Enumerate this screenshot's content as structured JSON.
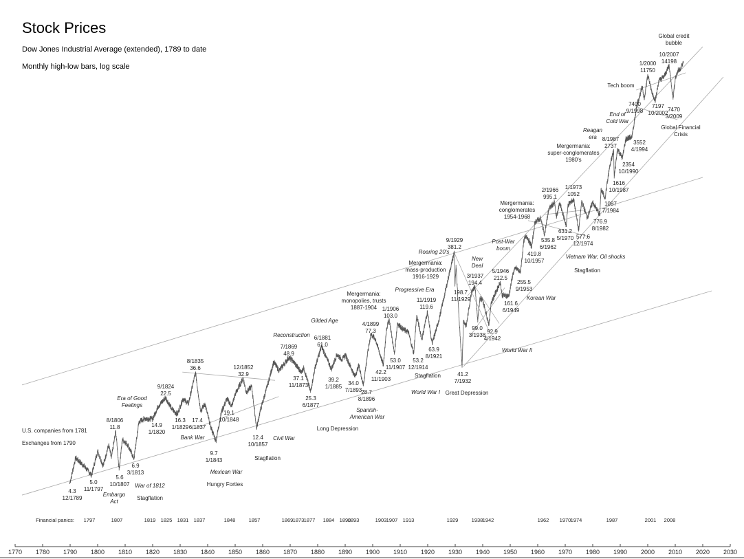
{
  "chart_data": {
    "type": "line",
    "title": "Stock Prices",
    "subtitle": "Dow Jones Industrial Average (extended), 1789 to date",
    "subtitle2": "Monthly high-low bars, log scale",
    "y_scale": "log",
    "grid": false,
    "xlim": [
      1770,
      2030
    ],
    "x_ticks": [
      1770,
      1780,
      1790,
      1800,
      1810,
      1820,
      1830,
      1840,
      1850,
      1860,
      1870,
      1880,
      1890,
      1900,
      1910,
      1920,
      1930,
      1940,
      1950,
      1960,
      1970,
      1980,
      1990,
      2000,
      2010,
      2020,
      2030
    ],
    "line_color": "#555555",
    "trend_line_color": "#aaaaaa",
    "notes": [
      "U.S. companies from 1781",
      "Exchanges from 1790"
    ],
    "series": [
      {
        "points": [
          [
            1789.9,
            4.3
          ],
          [
            1792,
            7
          ],
          [
            1795,
            6
          ],
          [
            1797.8,
            5.0
          ],
          [
            1800,
            8
          ],
          [
            1802,
            6
          ],
          [
            1804,
            9
          ],
          [
            1805,
            7
          ],
          [
            1806.6,
            11.8
          ],
          [
            1807.8,
            5.6
          ],
          [
            1809,
            10
          ],
          [
            1811,
            9
          ],
          [
            1813.2,
            6.9
          ],
          [
            1815,
            14
          ],
          [
            1817,
            15
          ],
          [
            1820,
            14.9
          ],
          [
            1822,
            19
          ],
          [
            1824.7,
            22.5
          ],
          [
            1827,
            18
          ],
          [
            1829,
            16.3
          ],
          [
            1831,
            22
          ],
          [
            1833,
            20
          ],
          [
            1835.6,
            36.6
          ],
          [
            1836.5,
            25
          ],
          [
            1837.5,
            17.4
          ],
          [
            1839,
            20
          ],
          [
            1841,
            13
          ],
          [
            1843,
            9.7
          ],
          [
            1845,
            17
          ],
          [
            1847,
            22
          ],
          [
            1848.8,
            19.1
          ],
          [
            1850,
            24
          ],
          [
            1852.9,
            32.9
          ],
          [
            1854,
            25
          ],
          [
            1856,
            28
          ],
          [
            1857.8,
            12.4
          ],
          [
            1859,
            17
          ],
          [
            1862,
            30
          ],
          [
            1864,
            45
          ],
          [
            1866,
            38
          ],
          [
            1869.5,
            48.9
          ],
          [
            1871,
            46
          ],
          [
            1873.9,
            37.1
          ],
          [
            1875,
            40
          ],
          [
            1877.4,
            25.3
          ],
          [
            1879,
            40
          ],
          [
            1881.4,
            61.0
          ],
          [
            1883,
            50
          ],
          [
            1885,
            39.2
          ],
          [
            1887,
            52
          ],
          [
            1889,
            47
          ],
          [
            1890,
            52
          ],
          [
            1893.5,
            34.0
          ],
          [
            1895,
            42
          ],
          [
            1896.6,
            28.7
          ],
          [
            1898,
            50
          ],
          [
            1899.3,
            77.3
          ],
          [
            1901,
            70
          ],
          [
            1903.9,
            42.2
          ],
          [
            1905,
            85
          ],
          [
            1906,
            103.0
          ],
          [
            1907.9,
            53.0
          ],
          [
            1909,
            95
          ],
          [
            1911,
            85
          ],
          [
            1913,
            80
          ],
          [
            1914.9,
            53.2
          ],
          [
            1916,
            110
          ],
          [
            1917.9,
            70
          ],
          [
            1919.9,
            119.6
          ],
          [
            1921.6,
            63.9
          ],
          [
            1924,
            100
          ],
          [
            1926,
            160
          ],
          [
            1928,
            260
          ],
          [
            1929.7,
            381.2
          ],
          [
            1929.9,
            198.7
          ],
          [
            1930.3,
            290
          ],
          [
            1931,
            150
          ],
          [
            1932.5,
            41.2
          ],
          [
            1933,
            100
          ],
          [
            1934,
            90
          ],
          [
            1936,
            180
          ],
          [
            1937.2,
            194.4
          ],
          [
            1938.2,
            99.0
          ],
          [
            1939,
            155
          ],
          [
            1940,
            150
          ],
          [
            1942.3,
            92.9
          ],
          [
            1943,
            140
          ],
          [
            1946.4,
            212.5
          ],
          [
            1947,
            165
          ],
          [
            1949.5,
            161.6
          ],
          [
            1951,
            250
          ],
          [
            1952,
            280
          ],
          [
            1953.7,
            255.5
          ],
          [
            1955,
            480
          ],
          [
            1956,
            520
          ],
          [
            1957.8,
            419.8
          ],
          [
            1959,
            680
          ],
          [
            1961,
            730
          ],
          [
            1962.5,
            535.8
          ],
          [
            1964,
            870
          ],
          [
            1966.1,
            995.1
          ],
          [
            1966.8,
            740
          ],
          [
            1968,
            985
          ],
          [
            1970.4,
            631.2
          ],
          [
            1971,
            950
          ],
          [
            1973.1,
            1052
          ],
          [
            1974.9,
            577.6
          ],
          [
            1976,
            1020
          ],
          [
            1978,
            740
          ],
          [
            1980,
            1000
          ],
          [
            1982.6,
            776.9
          ],
          [
            1983,
            1280
          ],
          [
            1984.5,
            1087
          ],
          [
            1986,
            1900
          ],
          [
            1987.6,
            2737
          ],
          [
            1987.8,
            1616
          ],
          [
            1989,
            2800
          ],
          [
            1990.8,
            2354
          ],
          [
            1992,
            3400
          ],
          [
            1994.3,
            3552
          ],
          [
            1996,
            6500
          ],
          [
            1998,
            9300
          ],
          [
            1998.7,
            7400
          ],
          [
            2000,
            11750
          ],
          [
            2001.7,
            8200
          ],
          [
            2002.8,
            7197
          ],
          [
            2004,
            10500
          ],
          [
            2006,
            11500
          ],
          [
            2007.8,
            14198
          ],
          [
            2009.2,
            7470
          ],
          [
            2010,
            11000
          ],
          [
            2011,
            12800
          ],
          [
            2012,
            13500
          ],
          [
            2013,
            15000
          ]
        ]
      }
    ],
    "trend_lines": [
      [
        [
          1772.5,
          3.4
        ],
        [
          2023.3,
          179
        ]
      ],
      [
        [
          1772.5,
          28.8
        ],
        [
          2020,
          1617
        ]
      ],
      [
        [
          1933,
          41.2
        ],
        [
          2027.5,
          11330
        ]
      ],
      [
        [
          1934.5,
          163
        ],
        [
          2020,
          20400
        ]
      ],
      [
        [
          1830.8,
          37
        ],
        [
          1864.5,
          31.5
        ]
      ],
      [
        [
          1834.5,
          12.2
        ],
        [
          1865.8,
          23
        ]
      ],
      [
        [
          1929.5,
          381
        ],
        [
          1942.5,
          80
        ]
      ],
      [
        [
          1937.2,
          194
        ],
        [
          1946,
          95
        ]
      ],
      [
        [
          1935.5,
          75
        ],
        [
          1948,
          190
        ]
      ],
      [
        [
          1962.5,
          785
        ],
        [
          1977.3,
          860
        ]
      ],
      [
        [
          1956.5,
          700
        ],
        [
          1979,
          510
        ]
      ],
      [
        [
          1995.8,
          8800
        ],
        [
          2013.8,
          12300
        ]
      ],
      [
        [
          1995.3,
          6400
        ],
        [
          2010.8,
          4960
        ]
      ]
    ],
    "point_labels": [
      "4.3\n12/1789",
      "5.0\n11/1797",
      "5.6\n10/1807",
      "6.9\n3/1813",
      "8/1806\n11.8",
      "14.9\n1/1820",
      "9/1824\n22.5",
      "16.3\n1/1829",
      "8/1835\n36.6",
      "17.4\n6/1837",
      "9.7\n1/1843",
      "19.1\n10/1848",
      "12/1852\n32.9",
      "12.4\n10/1857",
      "7/1869\n48.9",
      "37.1\n11/1873",
      "25.3\n6/1877",
      "6/1881\n61.0",
      "39.2\n1/1885",
      "34.0\n7/1893",
      "28.7\n8/1896",
      "4/1899\n77.3",
      "42.2\n11/1903",
      "1/1906\n103.0",
      "53.0\n11/1907",
      "53.2\n12/1914",
      "11/1919\n119.6",
      "63.9\n8/1921",
      "9/1929\n381.2",
      "198.7\n11/1929",
      "41.2\n7/1932",
      "3/1937\n194.4",
      "99.0\n3/1938",
      "92.9\n4/1942",
      "5/1946\n212.5",
      "161.6\n6/1949",
      "255.5\n9/1953",
      "419.8\n10/1957",
      "535.8\n6/1962",
      "2/1966\n995.1",
      "631.2\n5/1970",
      "1/1973\n1052",
      "577.6\n12/1974",
      "776.9\n8/1982",
      "1087\n7/1984",
      "1616\n10/1987",
      "8/1987\n2737",
      "2354\n10/1990",
      "3552\n4/1994",
      "7400\n9/1998",
      "1/2000\n11750",
      "7197\n10/2002",
      "10/2007\n14198",
      "7470\n3/2009"
    ],
    "event_labels": [
      "Era of Good\nFeelings",
      "Embargo\nAct",
      "War of 1812",
      "Stagflation",
      "Bank War",
      "Mexican War",
      "Hungry Forties",
      "Civil War",
      "Stagflation",
      "Long Depression",
      "Reconstruction",
      "Gilded Age",
      "Mergermania:\nmonopolies, trusts\n1887-1904",
      "Spanish-\nAmerican War",
      "Progressive Era",
      "Mergermania:\nmass-production\n1916-1929",
      "Roaring 20's",
      "Stagflation",
      "World War I",
      "Great Depression",
      "New\nDeal",
      "Post-War\nboom",
      "Mergermania:\nconglomerates\n1954-1968",
      "Korean War",
      "World War II",
      "Vietnam War, Oil shocks",
      "Stagflation",
      "Mergermania:\nsuper-conglomerates\n1980's",
      "Reagan\nera",
      "End of\nCold War",
      "Tech boom",
      "Global credit\nbubble",
      "Global Financial\nCrisis"
    ],
    "panics_label": "Financial panics:",
    "panics": [
      1797,
      1807,
      1819,
      1825,
      1831,
      1837,
      1848,
      1857,
      1869,
      1873,
      1877,
      1884,
      1890,
      1893,
      1903,
      1907,
      1913,
      1929,
      1938,
      1942,
      1962,
      1970,
      1974,
      1987,
      2001,
      2008
    ]
  }
}
